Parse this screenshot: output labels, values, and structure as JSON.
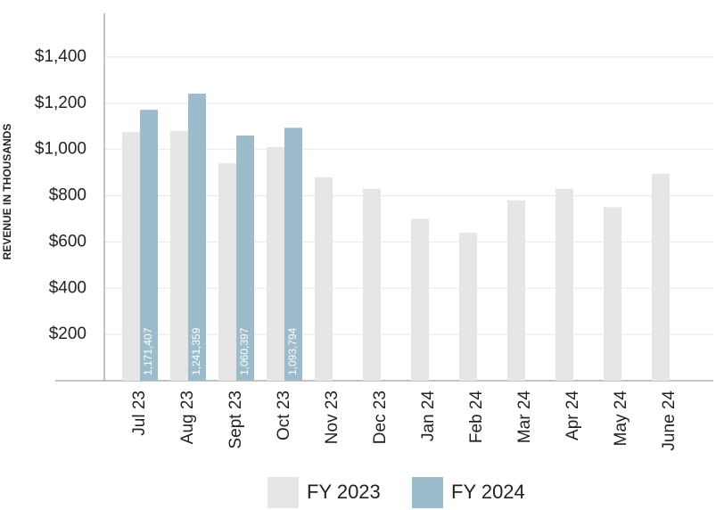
{
  "chart_data": {
    "type": "bar",
    "y_label": "REVENUE IN THOUSANDS",
    "categories": [
      "Jul 23",
      "Aug 23",
      "Sept 23",
      "Oct 23",
      "Nov 23",
      "Dec 23",
      "Jan 24",
      "Feb 24",
      "Mar 24",
      "Apr 24",
      "May 24",
      "June 24"
    ],
    "series": [
      {
        "name": "FY 2023",
        "color": "#e6e6e6",
        "values": [
          1075,
          1080,
          940,
          1010,
          880,
          830,
          700,
          640,
          780,
          830,
          750,
          895
        ]
      },
      {
        "name": "FY 2024",
        "color": "#9dbccb",
        "values": [
          1171.407,
          1241.359,
          1060.397,
          1093.794,
          null,
          null,
          null,
          null,
          null,
          null,
          null,
          null
        ],
        "value_labels": [
          "1,171,407",
          "1,241,359",
          "1,060,397",
          "1,093,794",
          null,
          null,
          null,
          null,
          null,
          null,
          null,
          null
        ]
      }
    ],
    "ylim": [
      0,
      1600
    ],
    "yticks": [
      {
        "value": 200,
        "label": "$200"
      },
      {
        "value": 400,
        "label": "$400"
      },
      {
        "value": 600,
        "label": "$600"
      },
      {
        "value": 800,
        "label": "$800"
      },
      {
        "value": 1000,
        "label": "$1,000"
      },
      {
        "value": 1200,
        "label": "$1,200"
      },
      {
        "value": 1400,
        "label": "$1,400"
      }
    ],
    "grid": true
  }
}
